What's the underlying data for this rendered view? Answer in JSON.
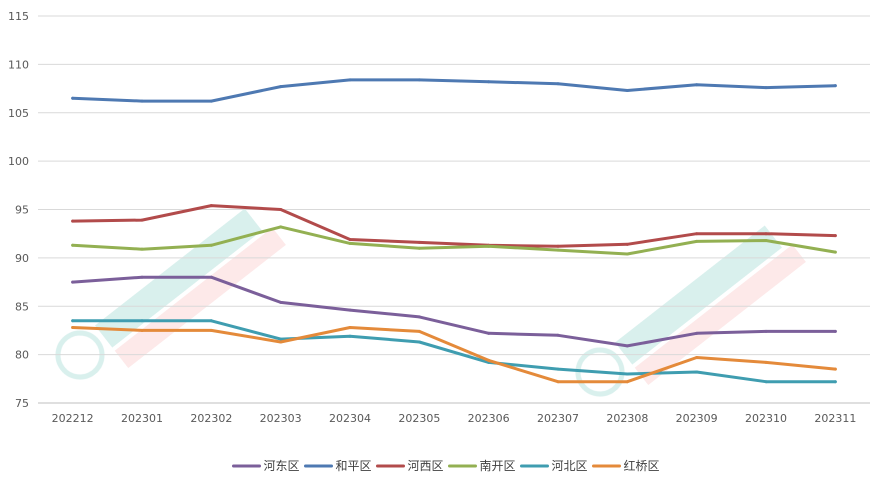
{
  "chart_data": {
    "type": "line",
    "title": "",
    "xlabel": "",
    "ylabel": "",
    "ylim": [
      75,
      115
    ],
    "yticks": [
      75,
      80,
      85,
      90,
      95,
      100,
      105,
      110,
      115
    ],
    "ytick_labels": [
      "75",
      "80",
      "85",
      "90",
      "95",
      "100",
      "105",
      "110",
      "115"
    ],
    "grid": true,
    "legend_position": "bottom",
    "categories": [
      "202212",
      "202301",
      "202302",
      "202303",
      "202304",
      "202305",
      "202306",
      "202307",
      "202308",
      "202309",
      "202310",
      "202311"
    ],
    "series": [
      {
        "name": "河东区",
        "color": "#7b5f9a",
        "values": [
          87.5,
          88.0,
          88.0,
          85.4,
          84.6,
          83.9,
          82.2,
          82.0,
          80.9,
          82.2,
          82.4,
          82.4
        ]
      },
      {
        "name": "和平区",
        "color": "#4e79b2",
        "values": [
          106.5,
          106.2,
          106.2,
          107.7,
          108.4,
          108.4,
          108.2,
          108.0,
          107.3,
          107.9,
          107.6,
          107.8
        ]
      },
      {
        "name": "河西区",
        "color": "#b24b4b",
        "values": [
          93.8,
          93.9,
          95.4,
          95.0,
          91.9,
          91.6,
          91.3,
          91.2,
          91.4,
          92.5,
          92.5,
          92.3
        ]
      },
      {
        "name": "南开区",
        "color": "#93b052",
        "values": [
          91.3,
          90.9,
          91.3,
          93.2,
          91.5,
          91.0,
          91.2,
          90.8,
          90.4,
          91.7,
          91.8,
          90.6
        ]
      },
      {
        "name": "河北区",
        "color": "#3f9db0",
        "values": [
          83.5,
          83.5,
          83.5,
          81.6,
          81.9,
          81.3,
          79.2,
          78.5,
          78.0,
          78.2,
          77.2,
          77.2
        ]
      },
      {
        "name": "红桥区",
        "color": "#e48a3a",
        "values": [
          82.8,
          82.5,
          82.5,
          81.3,
          82.8,
          82.4,
          79.4,
          77.2,
          77.2,
          79.7,
          79.2,
          78.5
        ]
      }
    ]
  }
}
